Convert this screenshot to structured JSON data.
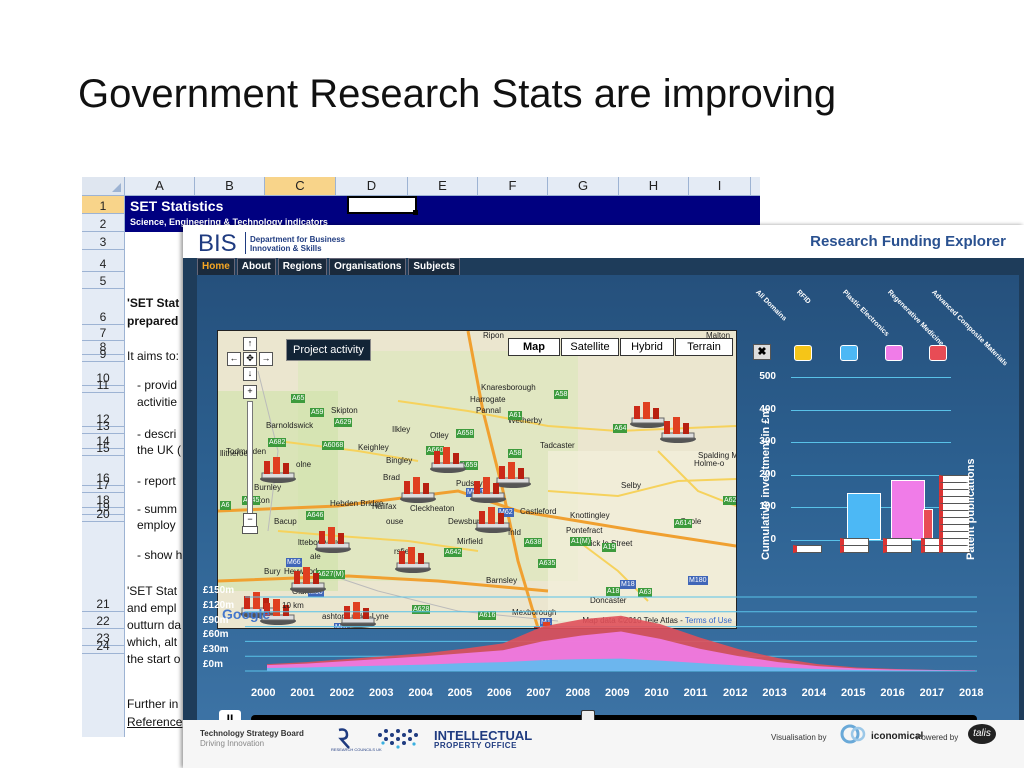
{
  "slide_title": "Government Research Stats are improving",
  "sheet": {
    "columns": [
      "A",
      "B",
      "C",
      "D",
      "E",
      "F",
      "G",
      "H",
      "I"
    ],
    "rows": [
      "1",
      "2",
      "3",
      "4",
      "5",
      "6",
      "7",
      "8",
      "9",
      "10",
      "11",
      "12",
      "13",
      "14",
      "15",
      "16",
      "17",
      "18",
      "19",
      "20",
      "21",
      "22",
      "23",
      "24"
    ],
    "title": "SET Statistics",
    "subtitle": "Science, Engineering & Technology indicators",
    "cells": {
      "r6a": "'SET Stat",
      "r6b": "prepared",
      "r8": "It aims to:",
      "r10a": "- provid",
      "r10b": "activitie",
      "r12a": "- descri",
      "r12b": "the UK (",
      "r14": "- report",
      "r16a": "- summ",
      "r16b": "employ",
      "r18": "- show h",
      "r21a": "'SET Stat",
      "r21b": "and empl",
      "r21c": "outturn da",
      "r21d": "which, alt",
      "r21e": "the start o",
      "r23a": "Further in",
      "r23b": "Reference"
    }
  },
  "bis": {
    "logo": "BIS",
    "dept_line1": "Department for Business",
    "dept_line2": "Innovation & Skills",
    "app_title": "Research Funding Explorer",
    "nav": [
      "Home",
      "About",
      "Regions",
      "Organisations",
      "Subjects"
    ],
    "map": {
      "project_button": "Project activity",
      "map_types": [
        "Map",
        "Satellite",
        "Hybrid",
        "Terrain"
      ],
      "places": [
        "Ripon",
        "Malton",
        "Knaresborough",
        "Harrogate",
        "Pannal",
        "Wetherby",
        "Skipton",
        "Barnoldswick",
        "Ilkley",
        "Otley",
        "Keighley",
        "Tadcaster",
        "Bingley",
        "Brad",
        "Pudsey",
        "Selby",
        "Burnley",
        "Hebden Bridge",
        "Halifax",
        "Cleckheaton",
        "Castleford",
        "Knottingley",
        "Goole",
        "Bacup",
        "Dewsbury",
        "Pontefract",
        "Mirfield",
        "Adwick le Street",
        "Heywood",
        "Bury",
        "Barnsley",
        "Doncaster",
        "Mexborough",
        "Spalding M",
        "Holme-o",
        "Todmorden",
        "Oldham",
        "ashton-under-Lyne",
        "olne",
        "llitheroe",
        "ington",
        "ale",
        "fnld",
        "rsfield",
        "ltteborough",
        "ouse"
      ],
      "roads": [
        "A65",
        "A59",
        "A629",
        "A682",
        "A6068",
        "A658",
        "A660",
        "A58",
        "A61",
        "A64",
        "A58",
        "A659",
        "A1",
        "A646",
        "A62",
        "A638",
        "A642",
        "A645",
        "M62",
        "M621",
        "M1",
        "M18",
        "M180",
        "A616",
        "A628",
        "A635",
        "A1(M)",
        "A19",
        "A63",
        "A614",
        "M66",
        "M60",
        "A627(M)",
        "M67",
        "A18",
        "A6"
      ],
      "copyright": "Map data ©2010  Tele Atlas -",
      "terms": "Terms of Use",
      "google": "Google",
      "scale": "10 km"
    },
    "chart_data": [
      {
        "type": "bar",
        "title": "",
        "ylabel": "Cumulative investment in £m",
        "y2label": "Patent publications",
        "legend": [
          "All Domains",
          "RFID",
          "Plastic Electronics",
          "Regenerative Medicine",
          "Advanced Composite Materials"
        ],
        "legend_colors": [
          "#222222",
          "#f5c518",
          "#4cb8f5",
          "#f07ce8",
          "#e84c55"
        ],
        "ylim": [
          0,
          500
        ],
        "yticks": [
          0,
          100,
          200,
          300,
          400,
          500
        ],
        "categories": [
          "All Domains",
          "RFID",
          "Plastic Electronics",
          "Regenerative Medicine",
          "Advanced Composite Materials"
        ],
        "values": [
          0,
          0,
          145,
          185,
          95
        ],
        "patent_stack_counts": [
          0,
          0,
          1,
          1,
          1
        ]
      },
      {
        "type": "area",
        "title": "",
        "ylabel": "",
        "yticks": [
          "£0m",
          "£30m",
          "£60m",
          "£90m",
          "£120m",
          "£150m"
        ],
        "ylim": [
          0,
          150
        ],
        "x": [
          "2000",
          "2001",
          "2002",
          "2003",
          "2004",
          "2005",
          "2006",
          "2007",
          "2008",
          "2009",
          "2010",
          "2011",
          "2012",
          "2013",
          "2014",
          "2015",
          "2016",
          "2017",
          "2018"
        ],
        "series": [
          {
            "color": "#5dbdf0",
            "values": [
              6,
              7,
              9,
              11,
              13,
              16,
              18,
              22,
              24,
              25,
              21,
              16,
              11,
              7,
              4,
              2,
              1,
              1,
              0
            ]
          },
          {
            "color": "#f07ce8",
            "values": [
              12,
              15,
              20,
              25,
              30,
              36,
              42,
              60,
              72,
              80,
              65,
              45,
              30,
              18,
              10,
              5,
              3,
              2,
              1
            ]
          },
          {
            "color": "#e0505a",
            "values": [
              14,
              18,
              24,
              30,
              36,
              45,
              56,
              90,
              105,
              112,
              95,
              68,
              44,
              26,
              14,
              7,
              4,
              2,
              1
            ]
          }
        ]
      }
    ],
    "timeline": {
      "pause_label": "II",
      "position_fraction": 0.5
    },
    "footer": {
      "tsb": "Technology Strategy Board",
      "tsb_sub": "Driving Innovation",
      "rc": "RESEARCH COUNCILS UK",
      "ipo1": "INTELLECTUAL",
      "ipo2": "PROPERTY OFFICE",
      "vis": "Visualisation by",
      "vis_brand": "iconomical",
      "powered": "Powered by",
      "powered_brand": "talis"
    }
  }
}
